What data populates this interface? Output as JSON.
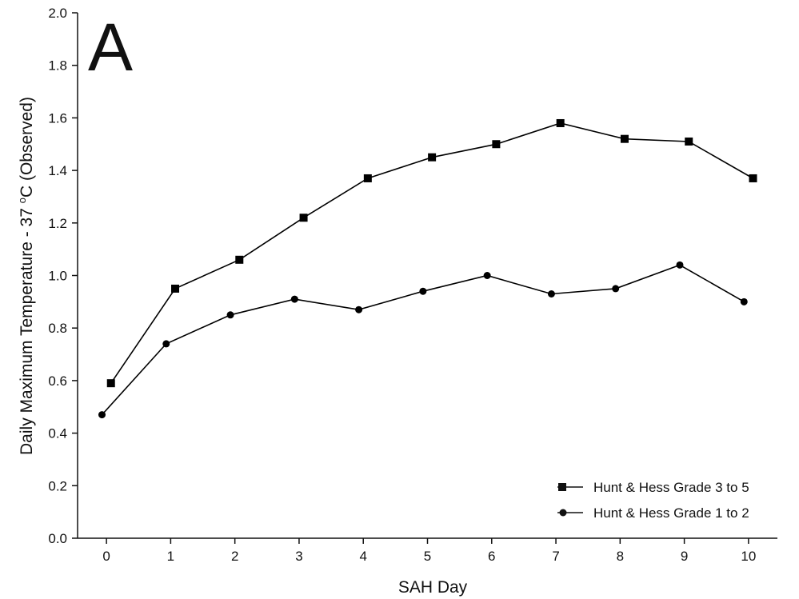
{
  "panel_label": "A",
  "chart_data": {
    "type": "line",
    "xlabel": "SAH Day",
    "ylabel": "Daily Maximum Temperature - 37 °C (Observed)",
    "ylabel_prefix": "Daily Maximum Temperature - 37 ",
    "ylabel_degree": "o",
    "ylabel_suffix": "C (Observed)",
    "x_ticks": [
      "0",
      "1",
      "2",
      "3",
      "4",
      "5",
      "6",
      "7",
      "8",
      "9",
      "10"
    ],
    "y_ticks": [
      "0.0",
      "0.2",
      "0.4",
      "0.6",
      "0.8",
      "1.0",
      "1.2",
      "1.4",
      "1.6",
      "1.8",
      "2.0"
    ],
    "xlim": [
      -0.45,
      10.45
    ],
    "ylim": [
      0,
      2.0
    ],
    "grid": false,
    "legend_position": "bottom-right",
    "series": [
      {
        "name": "Hunt & Hess Grade 3 to 5",
        "marker": "square",
        "color": "#000000",
        "x": [
          0.07,
          1.07,
          2.07,
          3.07,
          4.07,
          5.07,
          6.07,
          7.07,
          8.07,
          9.07,
          10.07
        ],
        "values": [
          0.59,
          0.95,
          1.06,
          1.22,
          1.37,
          1.45,
          1.5,
          1.58,
          1.52,
          1.51,
          1.37
        ]
      },
      {
        "name": "Hunt & Hess Grade 1 to 2",
        "marker": "circle",
        "color": "#000000",
        "x": [
          -0.07,
          0.93,
          1.93,
          2.93,
          3.93,
          4.93,
          5.93,
          6.93,
          7.93,
          8.93,
          9.93
        ],
        "values": [
          0.47,
          0.74,
          0.85,
          0.91,
          0.87,
          0.94,
          1.0,
          0.93,
          0.95,
          1.04,
          0.9
        ]
      }
    ]
  }
}
